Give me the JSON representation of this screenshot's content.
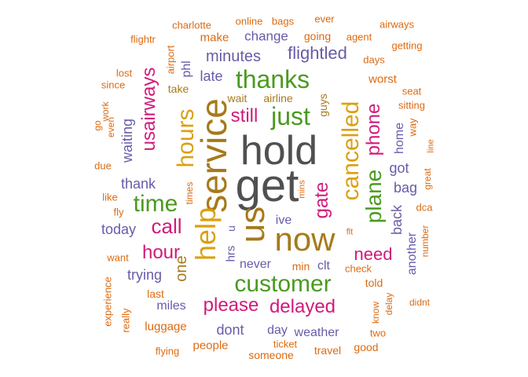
{
  "colors": {
    "gray": "#505050",
    "green": "#4a9a20",
    "magenta": "#d01b7a",
    "orange": "#dd6a10",
    "purple": "#6a5aa8",
    "gold": "#dba010",
    "brown": "#a67a1a"
  },
  "words": [
    {
      "text": "hold",
      "color": "gray",
      "size": "xxl"
    },
    {
      "text": "get",
      "color": "gray",
      "size": "xxl"
    },
    {
      "text": "service",
      "color": "brown",
      "size": "xl"
    },
    {
      "text": "us",
      "color": "brown",
      "size": "xl"
    },
    {
      "text": "now",
      "color": "brown",
      "size": "xl"
    },
    {
      "text": "help",
      "color": "gold",
      "size": "xl"
    },
    {
      "text": "hours",
      "color": "gold",
      "size": "l"
    },
    {
      "text": "cancelled",
      "color": "gold",
      "size": "l"
    },
    {
      "text": "thanks",
      "color": "green",
      "size": "l"
    },
    {
      "text": "just",
      "color": "green",
      "size": "l"
    },
    {
      "text": "customer",
      "color": "green",
      "size": "l"
    },
    {
      "text": "time",
      "color": "green",
      "size": "l"
    },
    {
      "text": "plane",
      "color": "green",
      "size": "ml"
    },
    {
      "text": "still",
      "color": "magenta",
      "size": "m"
    },
    {
      "text": "call",
      "color": "magenta",
      "size": "ml"
    },
    {
      "text": "hour",
      "color": "magenta",
      "size": "m"
    },
    {
      "text": "gate",
      "color": "magenta",
      "size": "m"
    },
    {
      "text": "phone",
      "color": "magenta",
      "size": "m"
    },
    {
      "text": "need",
      "color": "magenta",
      "size": "m"
    },
    {
      "text": "please",
      "color": "magenta",
      "size": "m"
    },
    {
      "text": "delayed",
      "color": "magenta",
      "size": "m"
    },
    {
      "text": "usairways",
      "color": "magenta",
      "size": "m"
    },
    {
      "text": "one",
      "color": "brown",
      "size": "ms"
    },
    {
      "text": "flightled",
      "color": "purple",
      "size": "ms"
    },
    {
      "text": "minutes",
      "color": "purple",
      "size": "ms"
    },
    {
      "text": "late",
      "color": "purple",
      "size": "s"
    },
    {
      "text": "change",
      "color": "purple",
      "size": "s"
    },
    {
      "text": "waiting",
      "color": "purple",
      "size": "s"
    },
    {
      "text": "thank",
      "color": "purple",
      "size": "s"
    },
    {
      "text": "today",
      "color": "purple",
      "size": "s"
    },
    {
      "text": "trying",
      "color": "purple",
      "size": "s"
    },
    {
      "text": "got",
      "color": "purple",
      "size": "s"
    },
    {
      "text": "bag",
      "color": "purple",
      "size": "s"
    },
    {
      "text": "back",
      "color": "purple",
      "size": "s"
    },
    {
      "text": "home",
      "color": "purple",
      "size": "xs"
    },
    {
      "text": "ive",
      "color": "purple",
      "size": "xs"
    },
    {
      "text": "never",
      "color": "purple",
      "size": "xs"
    },
    {
      "text": "dont",
      "color": "purple",
      "size": "s"
    },
    {
      "text": "day",
      "color": "purple",
      "size": "xs"
    },
    {
      "text": "weather",
      "color": "purple",
      "size": "xs"
    },
    {
      "text": "miles",
      "color": "purple",
      "size": "xs"
    },
    {
      "text": "another",
      "color": "purple",
      "size": "xs"
    },
    {
      "text": "phl",
      "color": "purple",
      "size": "xs"
    },
    {
      "text": "hrs",
      "color": "purple",
      "size": "xs"
    },
    {
      "text": "u",
      "color": "purple",
      "size": "xs"
    },
    {
      "text": "clt",
      "color": "purple",
      "size": "xs"
    },
    {
      "text": "wait",
      "color": "brown",
      "size": "xs"
    },
    {
      "text": "airline",
      "color": "brown",
      "size": "xs"
    },
    {
      "text": "guys",
      "color": "brown",
      "size": "xs"
    },
    {
      "text": "take",
      "color": "brown",
      "size": "xs"
    },
    {
      "text": "airport",
      "color": "orange",
      "size": "xxs"
    },
    {
      "text": "min",
      "color": "orange",
      "size": "xs"
    },
    {
      "text": "check",
      "color": "orange",
      "size": "xxs"
    },
    {
      "text": "told",
      "color": "orange",
      "size": "xs"
    },
    {
      "text": "last",
      "color": "orange",
      "size": "xs"
    },
    {
      "text": "luggage",
      "color": "orange",
      "size": "xs"
    },
    {
      "text": "people",
      "color": "orange",
      "size": "xs"
    },
    {
      "text": "someone",
      "color": "orange",
      "size": "xxs"
    },
    {
      "text": "ticket",
      "color": "orange",
      "size": "xxs"
    },
    {
      "text": "travel",
      "color": "orange",
      "size": "xxs"
    },
    {
      "text": "good",
      "color": "orange",
      "size": "xxs"
    },
    {
      "text": "flying",
      "color": "orange",
      "size": "xxs"
    },
    {
      "text": "worst",
      "color": "orange",
      "size": "xs"
    },
    {
      "text": "seat",
      "color": "orange",
      "size": "xxs"
    },
    {
      "text": "sitting",
      "color": "orange",
      "size": "xxs"
    },
    {
      "text": "way",
      "color": "orange",
      "size": "xxs"
    },
    {
      "text": "days",
      "color": "orange",
      "size": "xxs"
    },
    {
      "text": "getting",
      "color": "orange",
      "size": "xxs"
    },
    {
      "text": "airways",
      "color": "orange",
      "size": "xxs"
    },
    {
      "text": "agent",
      "color": "orange",
      "size": "xxs"
    },
    {
      "text": "going",
      "color": "orange",
      "size": "xxs"
    },
    {
      "text": "ever",
      "color": "orange",
      "size": "xxs"
    },
    {
      "text": "bags",
      "color": "orange",
      "size": "xxs"
    },
    {
      "text": "online",
      "color": "orange",
      "size": "xxs"
    },
    {
      "text": "make",
      "color": "orange",
      "size": "xxs"
    },
    {
      "text": "charlotte",
      "color": "orange",
      "size": "xxs"
    },
    {
      "text": "flightr",
      "color": "orange",
      "size": "xxs"
    },
    {
      "text": "lost",
      "color": "orange",
      "size": "xxs"
    },
    {
      "text": "since",
      "color": "orange",
      "size": "xxs"
    },
    {
      "text": "work",
      "color": "orange",
      "size": "xxs"
    },
    {
      "text": "go",
      "color": "orange",
      "size": "xxs"
    },
    {
      "text": "even",
      "color": "orange",
      "size": "xxs"
    },
    {
      "text": "due",
      "color": "orange",
      "size": "xxs"
    },
    {
      "text": "like",
      "color": "orange",
      "size": "xxs"
    },
    {
      "text": "fly",
      "color": "orange",
      "size": "xxs"
    },
    {
      "text": "want",
      "color": "orange",
      "size": "xxs"
    },
    {
      "text": "experience",
      "color": "orange",
      "size": "xxs"
    },
    {
      "text": "really",
      "color": "orange",
      "size": "xxs"
    },
    {
      "text": "times",
      "color": "orange",
      "size": "xxs"
    },
    {
      "text": "mins",
      "color": "orange",
      "size": "xxs"
    },
    {
      "text": "great",
      "color": "orange",
      "size": "xxs"
    },
    {
      "text": "line",
      "color": "orange",
      "size": "xxs"
    },
    {
      "text": "dca",
      "color": "orange",
      "size": "xxs"
    },
    {
      "text": "number",
      "color": "orange",
      "size": "xxs"
    },
    {
      "text": "flt",
      "color": "orange",
      "size": "xxs"
    },
    {
      "text": "know",
      "color": "orange",
      "size": "xxs"
    },
    {
      "text": "delay",
      "color": "orange",
      "size": "xxs"
    },
    {
      "text": "two",
      "color": "orange",
      "size": "xxs"
    },
    {
      "text": "didnt",
      "color": "orange",
      "size": "xxs"
    }
  ]
}
